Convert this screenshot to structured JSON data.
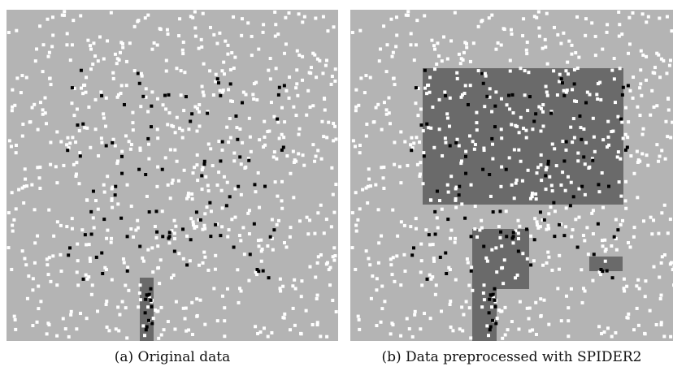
{
  "figure": {
    "panels": [
      {
        "id": "a",
        "caption": "(a) Original data",
        "background": "#b4b4b4",
        "region_color": "#6a6a6a",
        "point_colors": {
          "majority": "#ffffff",
          "minority": "#000000"
        }
      },
      {
        "id": "b",
        "caption": "(b) Data preprocessed with SPIDER2",
        "background": "#b4b4b4",
        "region_color": "#6a6a6a",
        "point_colors": {
          "majority": "#ffffff",
          "minority": "#000000"
        }
      }
    ]
  }
}
